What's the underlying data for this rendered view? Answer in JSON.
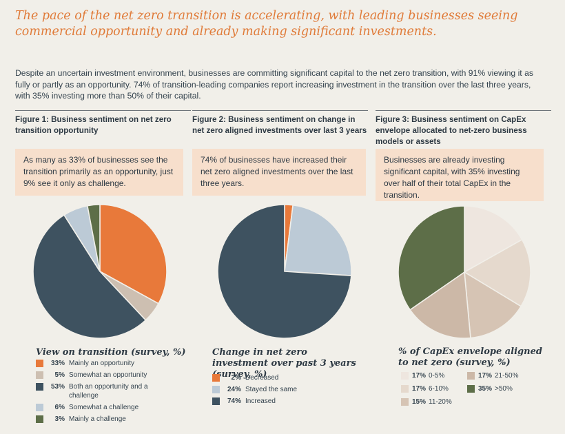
{
  "headline": "The pace of the net zero transition is accelerating, with leading businesses seeing commercial opportunity and already making significant investments.",
  "intro": "Despite an uncertain investment environment, businesses are committing significant capital to the net zero transition, with 91% viewing it as fully or partly as an opportunity. 74% of transition-leading companies report increasing investment in the transition over the last three years, with 35% investing more than 50% of their capital.",
  "figures": [
    {
      "heading": "Figure 1: Business sentiment on net zero transition opportunity",
      "callout": "As many as 33% of businesses see the transition primarily as an opportunity, just 9% see it only as challenge."
    },
    {
      "heading": "Figure 2: Business sentiment on change in net zero aligned investments over last 3 years",
      "callout": "74% of businesses have increased their net zero aligned investments over the last three years."
    },
    {
      "heading": "Figure 3: Business sentiment on CapEx envelope allocated to net-zero business models or assets",
      "callout": "Businesses are already investing significant capital, with 35% investing over half of their total CapEx in the transition."
    }
  ],
  "chart_data": [
    {
      "type": "pie",
      "title": "View on transition (survey, %)",
      "categories": [
        "Mainly an opportunity",
        "Somewhat an opportunity",
        "Both an opportunity and a challenge",
        "Somewhat a challenge",
        "Mainly a challenge"
      ],
      "labels": [
        "33%",
        "5%",
        "53%",
        "6%",
        "3%"
      ],
      "values": [
        33,
        5,
        53,
        6,
        3
      ],
      "colors": [
        "#e8793a",
        "#cdbfb1",
        "#3e5260",
        "#bccad6",
        "#5d6e48"
      ]
    },
    {
      "type": "pie",
      "title": "Change in net zero investment over past 3 years (survey, %)",
      "categories": [
        "Decreased",
        "Stayed the same",
        "Increased"
      ],
      "labels": [
        "2%",
        "24%",
        "74%"
      ],
      "values": [
        2,
        24,
        74
      ],
      "colors": [
        "#e8793a",
        "#bccad6",
        "#3e5260"
      ]
    },
    {
      "type": "pie",
      "title": "% of CapEx envelope aligned to net zero (survey, %)",
      "categories": [
        "0-5%",
        "6-10%",
        "11-20%",
        "21-50%",
        ">50%"
      ],
      "labels": [
        "17%",
        "17%",
        "15%",
        "17%",
        "35%"
      ],
      "values": [
        17,
        17,
        15,
        17,
        35
      ],
      "colors": [
        "#eee6df",
        "#e5d9cd",
        "#d6c4b4",
        "#ccb8a7",
        "#5d6e48"
      ]
    }
  ]
}
